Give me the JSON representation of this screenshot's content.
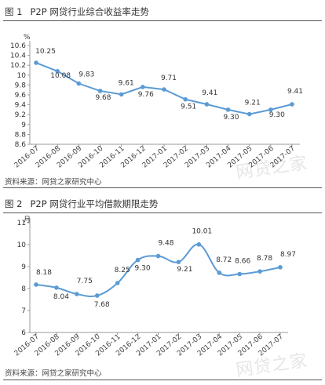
{
  "figures": [
    {
      "number": "图 1",
      "title": "P2P 网贷行业综合收益率走势",
      "source": "资料来源：网贷之家研究中心",
      "watermark": "网贷之家"
    },
    {
      "number": "图 2",
      "title": "P2P 网贷行业平均借款期限走势",
      "source": "资料来源：网贷之家研究中心",
      "watermark": "网贷之家"
    }
  ],
  "chart_data": [
    {
      "type": "line",
      "title": "P2P 网贷行业综合收益率走势",
      "ylabel": "%",
      "xlabel": "",
      "categories": [
        "2016-07",
        "2016-08",
        "2016-09",
        "2016-10",
        "2016-11",
        "2016-12",
        "2017-01",
        "2017-02",
        "2017-03",
        "2017-04",
        "2017-05",
        "2017-06",
        "2017-07"
      ],
      "series": [
        {
          "values": [
            10.25,
            10.08,
            9.83,
            9.68,
            9.61,
            9.76,
            9.71,
            9.51,
            9.41,
            9.3,
            9.21,
            9.3,
            9.41
          ]
        }
      ],
      "ylim": [
        8.6,
        10.6
      ],
      "yticks": [
        8.6,
        8.8,
        9.0,
        9.2,
        9.4,
        9.6,
        9.8,
        10.0,
        10.2,
        10.4,
        10.6
      ],
      "ytick_labels": [
        "8.6",
        "8.8",
        "9",
        "9.2",
        "9.4",
        "9.6",
        "9.8",
        "10",
        "10.2",
        "10.4",
        "10.6"
      ],
      "data_labels": [
        "10.25",
        "10.08",
        "9.83",
        "9.68",
        "9.61",
        "9.76",
        "9.71",
        "9.51",
        "9.41",
        "9.30",
        "9.21",
        "9.30",
        "9.41"
      ],
      "smooth": false,
      "markers": true,
      "grid": false,
      "color": "#5b9bd5"
    },
    {
      "type": "line",
      "title": "P2P 网贷行业平均借款期限走势",
      "ylabel": "月",
      "xlabel": "",
      "categories": [
        "2016-07",
        "2016-08",
        "2016-09",
        "2016-10",
        "2016-11",
        "2016-12",
        "2017-01",
        "2017-02",
        "2017-03",
        "2017-04",
        "2017-05",
        "2017-06",
        "2017-07"
      ],
      "series": [
        {
          "values": [
            8.18,
            8.04,
            7.75,
            7.68,
            8.25,
            9.3,
            9.48,
            9.21,
            10.01,
            8.72,
            8.66,
            8.78,
            8.97
          ]
        }
      ],
      "ylim": [
        6,
        11
      ],
      "yticks": [
        6,
        7,
        8,
        9,
        10,
        11
      ],
      "ytick_labels": [
        "6",
        "7",
        "8",
        "9",
        "10",
        "11"
      ],
      "data_labels": [
        "8.18",
        "8.04",
        "7.75",
        "7.68",
        "8.25",
        "9.30",
        "9.48",
        "9.21",
        "10.01",
        "8.72",
        "8.66",
        "8.78",
        "8.97"
      ],
      "smooth": true,
      "markers": true,
      "grid": false,
      "color": "#5b9bd5"
    }
  ]
}
